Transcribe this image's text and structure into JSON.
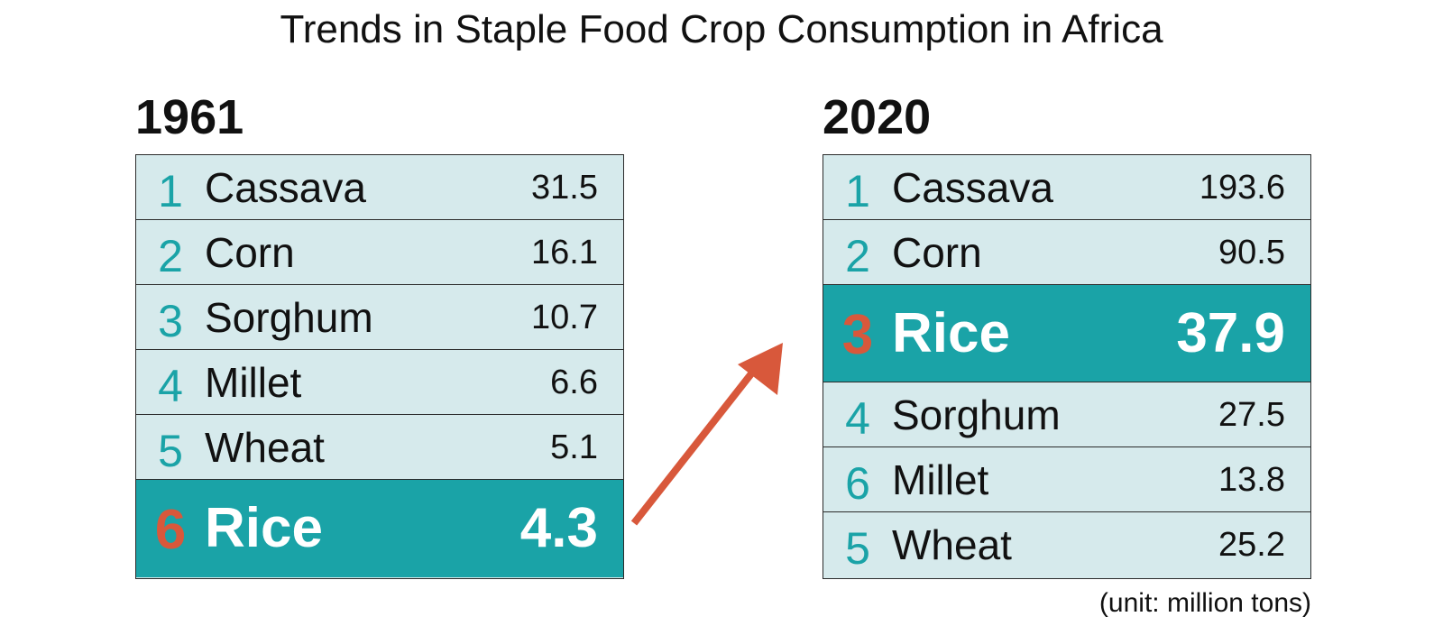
{
  "title": "Trends in Staple Food Crop Consumption in Africa",
  "unit_note": "(unit: million tons)",
  "colors": {
    "accent_teal": "#1aa3a7",
    "row_bg": "#d6eaec",
    "highlight_rank": "#d8583b",
    "arrow": "#d8583b"
  },
  "chart_data": [
    {
      "type": "table",
      "title": "1961",
      "columns": [
        "rank",
        "crop",
        "value"
      ],
      "rows": [
        {
          "rank": "1",
          "crop": "Cassava",
          "value": "31.5",
          "highlight": false
        },
        {
          "rank": "2",
          "crop": "Corn",
          "value": "16.1",
          "highlight": false
        },
        {
          "rank": "3",
          "crop": "Sorghum",
          "value": "10.7",
          "highlight": false
        },
        {
          "rank": "4",
          "crop": "Millet",
          "value": "6.6",
          "highlight": false
        },
        {
          "rank": "5",
          "crop": "Wheat",
          "value": "5.1",
          "highlight": false
        },
        {
          "rank": "6",
          "crop": "Rice",
          "value": "4.3",
          "highlight": true
        }
      ]
    },
    {
      "type": "table",
      "title": "2020",
      "columns": [
        "rank",
        "crop",
        "value"
      ],
      "rows": [
        {
          "rank": "1",
          "crop": "Cassava",
          "value": "193.6",
          "highlight": false
        },
        {
          "rank": "2",
          "crop": "Corn",
          "value": "90.5",
          "highlight": false
        },
        {
          "rank": "3",
          "crop": "Rice",
          "value": "37.9",
          "highlight": true
        },
        {
          "rank": "4",
          "crop": "Sorghum",
          "value": "27.5",
          "highlight": false
        },
        {
          "rank": "6",
          "crop": "Millet",
          "value": "13.8",
          "highlight": false
        },
        {
          "rank": "5",
          "crop": "Wheat",
          "value": "25.2",
          "highlight": false
        }
      ]
    }
  ]
}
